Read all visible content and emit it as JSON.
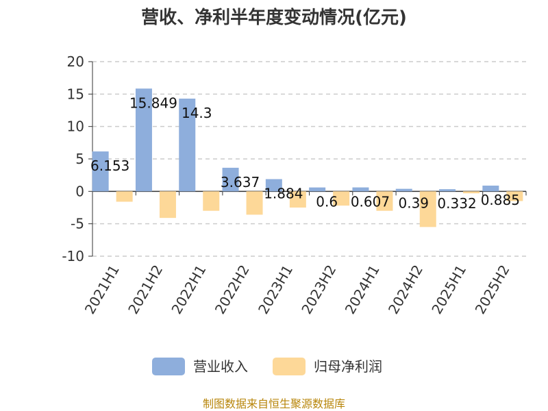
{
  "chart_data": {
    "type": "bar",
    "title": "营收、净利半年度变动情况(亿元)",
    "categories": [
      "2021H1",
      "2021H2",
      "2022H1",
      "2022H2",
      "2023H1",
      "2023H2",
      "2024H1",
      "2024H2",
      "2025H1",
      "2025H2"
    ],
    "series": [
      {
        "name": "营业收入",
        "color": "#8eaedc",
        "values": [
          6.153,
          15.849,
          14.3,
          3.637,
          1.884,
          0.6,
          0.607,
          0.39,
          0.332,
          0.885
        ],
        "labels": [
          "6.153",
          "15.849",
          "14.3",
          "3.637",
          "1.884",
          "0.6",
          "0.607",
          "0.39",
          "0.332",
          "0.885"
        ]
      },
      {
        "name": "归母净利润",
        "color": "#fdd898",
        "values": [
          -1.6,
          -4.1,
          -3.0,
          -3.6,
          -2.5,
          -2.2,
          -3.0,
          -5.5,
          -0.3,
          -1.5
        ]
      }
    ],
    "ylim": [
      -10,
      20
    ],
    "yticks": [
      "20",
      "15",
      "10",
      "5",
      "0",
      "-5",
      "-10"
    ],
    "grid": true,
    "legend": "bottom"
  },
  "source_note": "制图数据来自恒生聚源数据库"
}
